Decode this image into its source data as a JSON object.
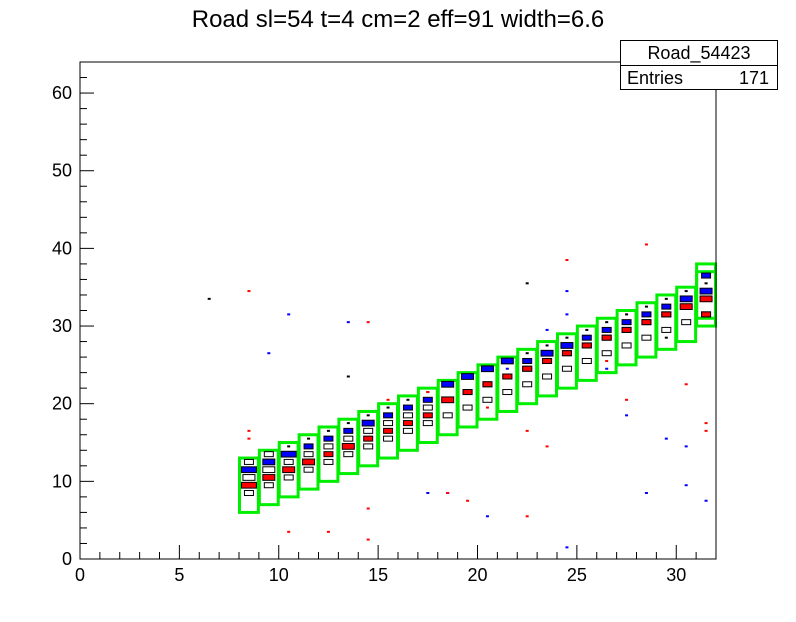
{
  "title": "Road sl=54 t=4 cm=2 eff=91 width=6.6",
  "stats": {
    "name": "Road_54423",
    "entries_label": "Entries",
    "entries_value": "171"
  },
  "chart_data": {
    "type": "heatmap",
    "title": "Road sl=54 t=4 cm=2 eff=91 width=6.6",
    "xlabel": "",
    "ylabel": "",
    "xlim": [
      0,
      32
    ],
    "ylim": [
      0,
      64
    ],
    "x_ticks": [
      0,
      5,
      10,
      15,
      20,
      25,
      30
    ],
    "y_ticks": [
      0,
      10,
      20,
      30,
      40,
      50,
      60
    ],
    "series": [
      {
        "color": "#000000",
        "cells": [
          [
            8,
            8,
            2
          ],
          [
            8,
            10,
            3
          ],
          [
            8,
            12,
            2
          ],
          [
            9,
            9,
            2
          ],
          [
            9,
            11,
            3
          ],
          [
            9,
            13,
            2
          ],
          [
            10,
            10,
            2
          ],
          [
            10,
            12,
            2
          ],
          [
            10,
            14,
            1
          ],
          [
            11,
            11,
            2
          ],
          [
            11,
            13,
            2
          ],
          [
            11,
            15,
            1
          ],
          [
            12,
            12,
            2
          ],
          [
            12,
            14,
            2
          ],
          [
            12,
            16,
            1
          ],
          [
            13,
            13,
            2
          ],
          [
            13,
            15,
            2
          ],
          [
            13,
            17,
            1
          ],
          [
            14,
            14,
            2
          ],
          [
            14,
            16,
            2
          ],
          [
            14,
            18,
            1
          ],
          [
            15,
            15,
            2
          ],
          [
            15,
            17,
            2
          ],
          [
            15,
            19,
            1
          ],
          [
            16,
            16,
            2
          ],
          [
            16,
            18,
            2
          ],
          [
            16,
            20,
            1
          ],
          [
            17,
            17,
            2
          ],
          [
            17,
            19,
            2
          ],
          [
            17,
            21,
            1
          ],
          [
            18,
            18,
            2
          ],
          [
            18,
            20,
            2
          ],
          [
            18,
            22,
            1
          ],
          [
            19,
            19,
            2
          ],
          [
            19,
            21,
            2
          ],
          [
            19,
            23,
            1
          ],
          [
            20,
            20,
            2
          ],
          [
            20,
            22,
            2
          ],
          [
            20,
            24,
            1
          ],
          [
            21,
            21,
            2
          ],
          [
            21,
            23,
            2
          ],
          [
            22,
            22,
            2
          ],
          [
            22,
            24,
            2
          ],
          [
            22,
            26,
            1
          ],
          [
            23,
            23,
            2
          ],
          [
            23,
            25,
            2
          ],
          [
            23,
            27,
            1
          ],
          [
            24,
            24,
            2
          ],
          [
            24,
            26,
            2
          ],
          [
            24,
            28,
            1
          ],
          [
            25,
            25,
            2
          ],
          [
            25,
            27,
            2
          ],
          [
            25,
            29,
            1
          ],
          [
            26,
            26,
            2
          ],
          [
            26,
            28,
            2
          ],
          [
            26,
            30,
            1
          ],
          [
            27,
            27,
            2
          ],
          [
            27,
            29,
            2
          ],
          [
            27,
            31,
            1
          ],
          [
            28,
            28,
            2
          ],
          [
            28,
            30,
            2
          ],
          [
            28,
            32,
            1
          ],
          [
            29,
            29,
            2
          ],
          [
            29,
            31,
            2
          ],
          [
            29,
            33,
            1
          ],
          [
            30,
            30,
            2
          ],
          [
            30,
            32,
            2
          ],
          [
            30,
            34,
            1
          ],
          [
            31,
            31,
            2
          ],
          [
            31,
            33,
            2
          ],
          [
            31,
            35,
            1
          ],
          [
            13,
            23,
            1
          ],
          [
            22,
            35,
            1
          ],
          [
            29,
            28,
            1
          ],
          [
            6,
            33,
            1
          ]
        ]
      },
      {
        "color": "#0000ff",
        "cells": [
          [
            8,
            11,
            4
          ],
          [
            9,
            12,
            3
          ],
          [
            10,
            13,
            4
          ],
          [
            11,
            14,
            2
          ],
          [
            12,
            15,
            2
          ],
          [
            13,
            16,
            2
          ],
          [
            14,
            17,
            3
          ],
          [
            15,
            18,
            2
          ],
          [
            16,
            19,
            2
          ],
          [
            17,
            20,
            2
          ],
          [
            18,
            22,
            3
          ],
          [
            19,
            23,
            3
          ],
          [
            20,
            24,
            3
          ],
          [
            21,
            25,
            3
          ],
          [
            22,
            25,
            2
          ],
          [
            23,
            26,
            3
          ],
          [
            24,
            27,
            3
          ],
          [
            25,
            28,
            2
          ],
          [
            26,
            29,
            2
          ],
          [
            27,
            30,
            2
          ],
          [
            28,
            31,
            2
          ],
          [
            29,
            32,
            2
          ],
          [
            30,
            33,
            3
          ],
          [
            31,
            34,
            3
          ],
          [
            31,
            36,
            2
          ],
          [
            9,
            26,
            1
          ],
          [
            10,
            31,
            1
          ],
          [
            13,
            30,
            1
          ],
          [
            17,
            8,
            1
          ],
          [
            18,
            8,
            1
          ],
          [
            20,
            5,
            1
          ],
          [
            24,
            34,
            1
          ],
          [
            24,
            31,
            1
          ],
          [
            24,
            1,
            1
          ],
          [
            28,
            8,
            1
          ],
          [
            29,
            15,
            1
          ],
          [
            30,
            14,
            1
          ],
          [
            30,
            9,
            1
          ],
          [
            31,
            7,
            1
          ],
          [
            23,
            29,
            1
          ],
          [
            27,
            18,
            1
          ],
          [
            26,
            24,
            1
          ],
          [
            21,
            24,
            1
          ]
        ]
      },
      {
        "color": "#ff0000",
        "cells": [
          [
            8,
            9,
            4
          ],
          [
            9,
            10,
            3
          ],
          [
            10,
            11,
            3
          ],
          [
            11,
            12,
            3
          ],
          [
            12,
            13,
            2
          ],
          [
            13,
            14,
            3
          ],
          [
            14,
            15,
            2
          ],
          [
            15,
            16,
            2
          ],
          [
            16,
            17,
            2
          ],
          [
            17,
            18,
            2
          ],
          [
            18,
            20,
            3
          ],
          [
            19,
            21,
            2
          ],
          [
            20,
            22,
            2
          ],
          [
            21,
            23,
            2
          ],
          [
            22,
            24,
            2
          ],
          [
            23,
            25,
            2
          ],
          [
            24,
            26,
            2
          ],
          [
            25,
            27,
            2
          ],
          [
            26,
            28,
            2
          ],
          [
            27,
            29,
            2
          ],
          [
            28,
            30,
            2
          ],
          [
            29,
            31,
            2
          ],
          [
            30,
            32,
            3
          ],
          [
            31,
            33,
            3
          ],
          [
            31,
            31,
            2
          ],
          [
            8,
            34,
            1
          ],
          [
            8,
            16,
            1
          ],
          [
            8,
            15,
            1
          ],
          [
            14,
            30,
            1
          ],
          [
            14,
            6,
            1
          ],
          [
            14,
            2,
            1
          ],
          [
            15,
            20,
            1
          ],
          [
            17,
            21,
            1
          ],
          [
            18,
            8,
            1
          ],
          [
            19,
            7,
            1
          ],
          [
            20,
            19,
            1
          ],
          [
            22,
            16,
            1
          ],
          [
            22,
            5,
            1
          ],
          [
            23,
            14,
            1
          ],
          [
            24,
            38,
            1
          ],
          [
            26,
            25,
            1
          ],
          [
            27,
            20,
            1
          ],
          [
            28,
            40,
            1
          ],
          [
            30,
            22,
            1
          ],
          [
            31,
            17,
            1
          ],
          [
            31,
            16,
            1
          ],
          [
            12,
            3,
            1
          ],
          [
            10,
            3,
            1
          ]
        ]
      }
    ],
    "boxes": [
      [
        8,
        6,
        13
      ],
      [
        9,
        7,
        14
      ],
      [
        10,
        8,
        15
      ],
      [
        11,
        9,
        16
      ],
      [
        12,
        10,
        17
      ],
      [
        13,
        11,
        18
      ],
      [
        14,
        12,
        19
      ],
      [
        15,
        13,
        20
      ],
      [
        16,
        14,
        21
      ],
      [
        17,
        15,
        22
      ],
      [
        18,
        16,
        23
      ],
      [
        19,
        17,
        24
      ],
      [
        20,
        18,
        25
      ],
      [
        21,
        19,
        26
      ],
      [
        22,
        20,
        27
      ],
      [
        23,
        21,
        28
      ],
      [
        24,
        22,
        29
      ],
      [
        25,
        23,
        30
      ],
      [
        26,
        24,
        31
      ],
      [
        27,
        25,
        32
      ],
      [
        28,
        26,
        33
      ],
      [
        29,
        27,
        34
      ],
      [
        30,
        28,
        35
      ],
      [
        31,
        30,
        37
      ],
      [
        31,
        31,
        38
      ]
    ],
    "box_color": "#00ee00",
    "grid": false,
    "legend": "top-right"
  }
}
